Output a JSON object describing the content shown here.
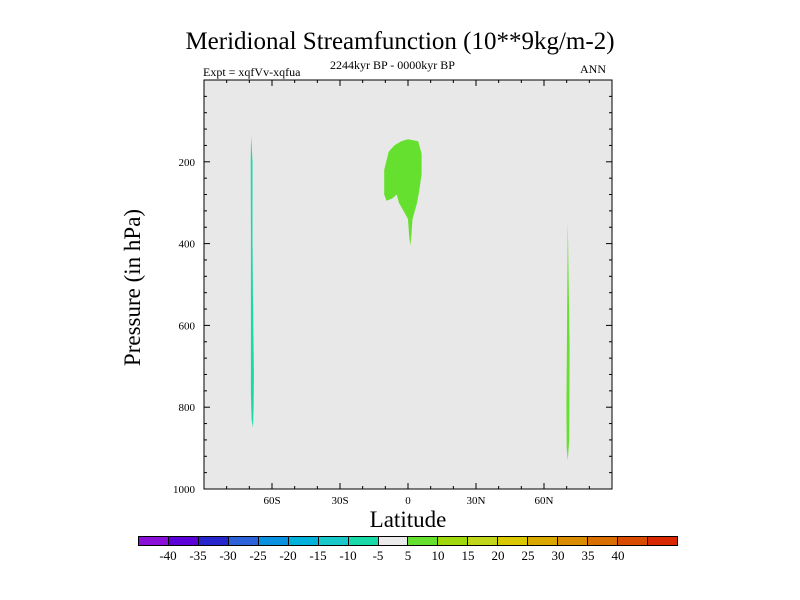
{
  "header": {
    "title": "Meridional Streamfunction (10**9kg/m-2)",
    "left_subtitle": "Expt = xqfVv-xqfua",
    "center_subtitle": "2244kyr BP - 0000kyr BP",
    "right_subtitle": "ANN"
  },
  "chart_data": {
    "type": "heatmap",
    "title": "Meridional Streamfunction (10**9kg/m-2)",
    "xlabel": "Latitude",
    "ylabel": "Pressure (in hPa)",
    "xlim": [
      -90,
      90
    ],
    "ylim": [
      1000,
      0
    ],
    "x_ticks": [
      -60,
      -30,
      0,
      30,
      60
    ],
    "x_tick_labels": [
      "60S",
      "30S",
      "0",
      "30N",
      "60N"
    ],
    "y_ticks": [
      200,
      400,
      600,
      800,
      1000
    ],
    "y_tick_labels": [
      "200",
      "400",
      "600",
      "800",
      "1000"
    ],
    "background_color": "#e8e8e8",
    "regions": [
      {
        "name": "southern-negative-cell",
        "bin": "-10 to -5",
        "color": "#19d9a8",
        "outline": [
          [
            -69.2,
            135
          ],
          [
            -68.6,
            200
          ],
          [
            -68.6,
            390
          ],
          [
            -68.4,
            540
          ],
          [
            -68.0,
            720
          ],
          [
            -68.1,
            800
          ],
          [
            -68.4,
            850
          ],
          [
            -69.0,
            830
          ],
          [
            -69.3,
            770
          ],
          [
            -69.3,
            600
          ],
          [
            -69.3,
            380
          ],
          [
            -69.4,
            200
          ]
        ]
      },
      {
        "name": "tropical-positive-cell",
        "bin": "5 to 10",
        "color": "#66e02e",
        "outline": [
          [
            -6,
            160
          ],
          [
            -3,
            150
          ],
          [
            0,
            145
          ],
          [
            4.5,
            150
          ],
          [
            6,
            180
          ],
          [
            6,
            230
          ],
          [
            5,
            270
          ],
          [
            4,
            300
          ],
          [
            3,
            320
          ],
          [
            2,
            340
          ],
          [
            1.5,
            380
          ],
          [
            1,
            405
          ],
          [
            0.5,
            380
          ],
          [
            0,
            340
          ],
          [
            -2,
            320
          ],
          [
            -4,
            300
          ],
          [
            -5,
            280
          ],
          [
            -7,
            290
          ],
          [
            -9.5,
            295
          ],
          [
            -10.5,
            280
          ],
          [
            -10.5,
            220
          ],
          [
            -8.5,
            175
          ]
        ]
      },
      {
        "name": "northern-positive-cell",
        "bin": "5 to 10",
        "color": "#66e02e",
        "outline": [
          [
            70.5,
            345
          ],
          [
            70.9,
            500
          ],
          [
            71.3,
            650
          ],
          [
            71.2,
            800
          ],
          [
            71.1,
            880
          ],
          [
            70.5,
            930
          ],
          [
            70.0,
            900
          ],
          [
            69.9,
            800
          ],
          [
            70.1,
            650
          ],
          [
            70.3,
            500
          ]
        ]
      }
    ],
    "colorbar": {
      "colors": [
        "#8a0fd9",
        "#5c00d9",
        "#2626cc",
        "#2c62d9",
        "#0a90e0",
        "#00b2d9",
        "#19c8c8",
        "#19d9a8",
        "#ebebeb",
        "#66e02e",
        "#a0d80e",
        "#c0d61c",
        "#d9c800",
        "#d9a800",
        "#d98c00",
        "#d96e00",
        "#d94c00",
        "#d92800"
      ],
      "labels": [
        "-40",
        "-35",
        "-30",
        "-25",
        "-20",
        "-15",
        "-10",
        "-5",
        "5",
        "10",
        "15",
        "20",
        "25",
        "30",
        "35",
        "40"
      ]
    }
  }
}
